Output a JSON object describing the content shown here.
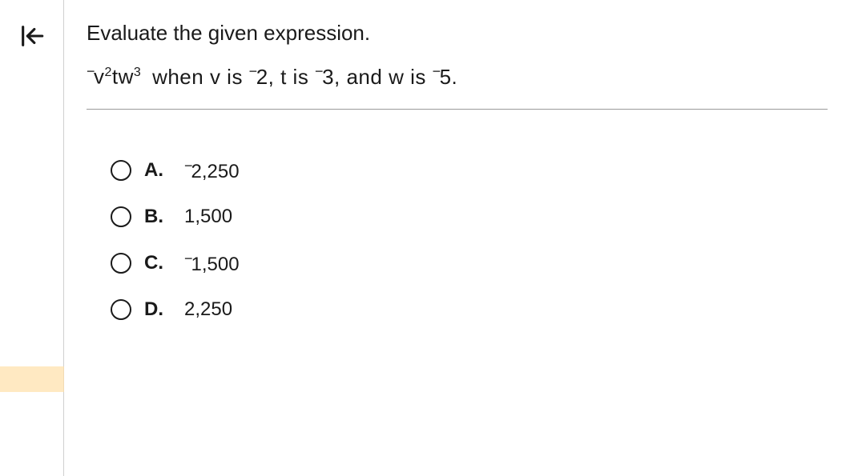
{
  "question": {
    "prompt": "Evaluate the given expression.",
    "expression_html": "<span class=\"neg\">−</span>v<sup>2</sup>tw<sup>3</sup>",
    "condition": "when v is <span class=\"neg\">−</span>2, t is <span class=\"neg\">−</span>3, and w is <span class=\"neg\">−</span>5."
  },
  "options": [
    {
      "letter": "A.",
      "text": "<span class=\"neg\">−</span>2,250"
    },
    {
      "letter": "B.",
      "text": "1,500"
    },
    {
      "letter": "C.",
      "text": "<span class=\"neg\">−</span>1,500"
    },
    {
      "letter": "D.",
      "text": "2,250"
    }
  ],
  "colors": {
    "page_bg": "#f2f2f2",
    "content_bg": "#ffffff",
    "text": "#1a1a1a",
    "divider": "#9a9a9a",
    "highlight": "#ffe0a8"
  },
  "typography": {
    "body_fontsize": 26,
    "option_fontsize": 24,
    "font_family": "Arial"
  }
}
